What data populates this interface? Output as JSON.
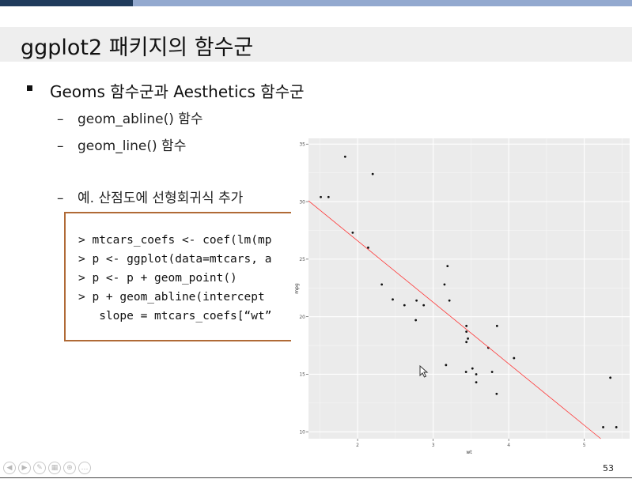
{
  "slide": {
    "title": "ggplot2 패키지의 함수군",
    "bullet_main": "Geoms 함수군과 Aesthetics 함수군",
    "sub_items": [
      "geom_abline() 함수",
      "geom_line() 함수",
      "예. 산점도에 선형회귀식 추가"
    ],
    "code_lines": [
      "> mtcars_coefs <- coef(lm(mp",
      "> p <- ggplot(data=mtcars, a",
      "> p <- p + geom_point()",
      "> p + geom_abline(intercept",
      "   slope = mtcars_coefs[“wt”"
    ],
    "page_number": "53",
    "nav_buttons": [
      "left-arrow-icon",
      "right-arrow-icon",
      "pen-icon",
      "slides-icon",
      "zoom-icon",
      "more-icon"
    ],
    "nav_glyphs": [
      "◀",
      "▶",
      "✎",
      "▦",
      "⊕",
      "…"
    ]
  },
  "colors": {
    "top_bar_dark": "#1f3b5c",
    "top_bar_light": "#93a9cf",
    "code_border": "#b06a36",
    "regression_line": "#ff3333",
    "panel_background": "#ebebeb"
  },
  "chart_data": {
    "type": "scatter",
    "xlabel": "wt",
    "ylabel": "mpg",
    "xlim": [
      1.35,
      5.6
    ],
    "ylim": [
      9.4,
      35.5
    ],
    "xticks": [
      2,
      3,
      4,
      5
    ],
    "yticks": [
      10,
      15,
      20,
      25,
      30,
      35
    ],
    "grid": true,
    "x": [
      2.62,
      2.875,
      2.32,
      3.215,
      3.44,
      3.46,
      3.57,
      3.19,
      3.15,
      3.44,
      3.44,
      4.07,
      3.73,
      3.78,
      5.25,
      5.424,
      5.345,
      2.2,
      1.615,
      1.835,
      2.465,
      3.52,
      3.435,
      3.84,
      3.845,
      1.935,
      2.14,
      1.513,
      3.17,
      2.77,
      3.57,
      2.78
    ],
    "y": [
      21.0,
      21.0,
      22.8,
      21.4,
      18.7,
      18.1,
      14.3,
      24.4,
      22.8,
      19.2,
      17.8,
      16.4,
      17.3,
      15.2,
      10.4,
      10.4,
      14.7,
      32.4,
      30.4,
      33.9,
      21.5,
      15.5,
      15.2,
      13.3,
      19.2,
      27.3,
      26.0,
      30.4,
      15.8,
      19.7,
      15.0,
      21.4
    ],
    "abline": {
      "intercept": 37.285,
      "slope": -5.344
    }
  }
}
